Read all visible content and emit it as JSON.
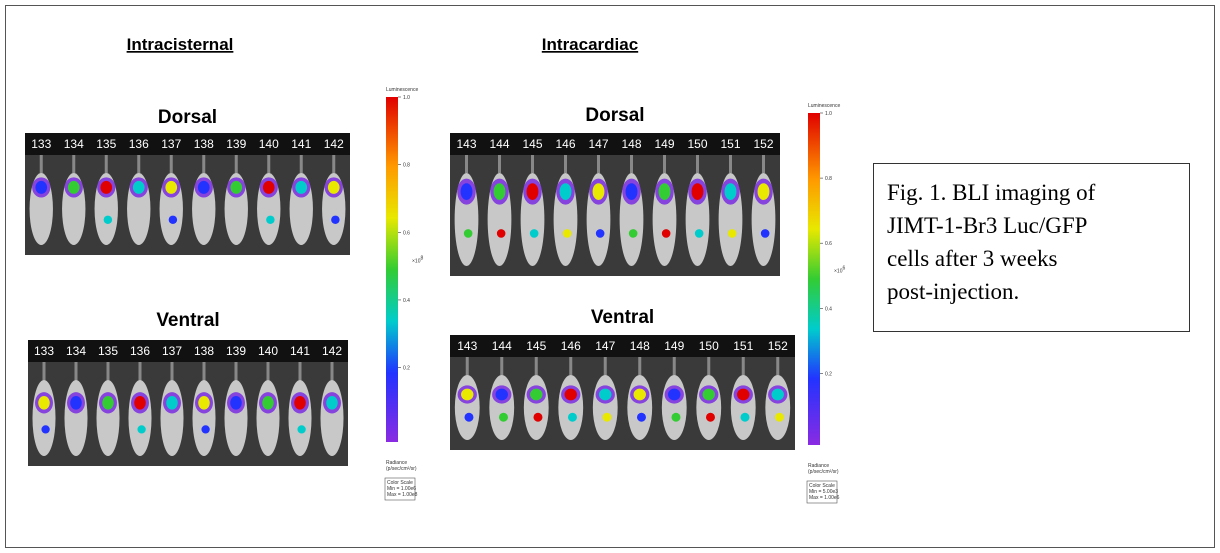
{
  "figure": {
    "groups": [
      {
        "title": "Intracisternal",
        "panels": [
          {
            "label": "Dorsal",
            "mice": [
              "133",
              "134",
              "135",
              "136",
              "137",
              "138",
              "139",
              "140",
              "141",
              "142"
            ]
          },
          {
            "label": "Ventral",
            "mice": [
              "133",
              "134",
              "135",
              "136",
              "137",
              "138",
              "139",
              "140",
              "141",
              "142"
            ]
          }
        ],
        "colorbar": {
          "title": "Luminescence",
          "ticks": [
            "1.0",
            "0.8",
            "0.6",
            "0.4",
            "0.2"
          ],
          "exponent_base": "×10",
          "exponent_power": "8",
          "radiance": "Radiance",
          "radiance_unit": "(p/sec/cm²/sr)",
          "scale_title": "Color Scale",
          "min": "Min = 1.00e6",
          "max": "Max = 1.00e8"
        }
      },
      {
        "title": "Intracardiac",
        "panels": [
          {
            "label": "Dorsal",
            "mice": [
              "143",
              "144",
              "145",
              "146",
              "147",
              "148",
              "149",
              "150",
              "151",
              "152"
            ]
          },
          {
            "label": "Ventral",
            "mice": [
              "143",
              "144",
              "145",
              "146",
              "147",
              "148",
              "149",
              "150",
              "151",
              "152"
            ]
          }
        ],
        "colorbar": {
          "title": "Luminescence",
          "ticks": [
            "1.0",
            "0.8",
            "0.6",
            "0.4",
            "0.2"
          ],
          "exponent_base": "×10",
          "exponent_power": "6",
          "radiance": "Radiance",
          "radiance_unit": "(p/sec/cm²/sr)",
          "scale_title": "Color Scale",
          "min": "Min = 5.00e3",
          "max": "Max = 1.00e6"
        }
      }
    ]
  },
  "caption": {
    "lines": [
      "Fig. 1. BLI imaging of",
      "JIMT-1-Br3 Luc/GFP",
      "cells after 3 weeks",
      "post-injection."
    ]
  }
}
